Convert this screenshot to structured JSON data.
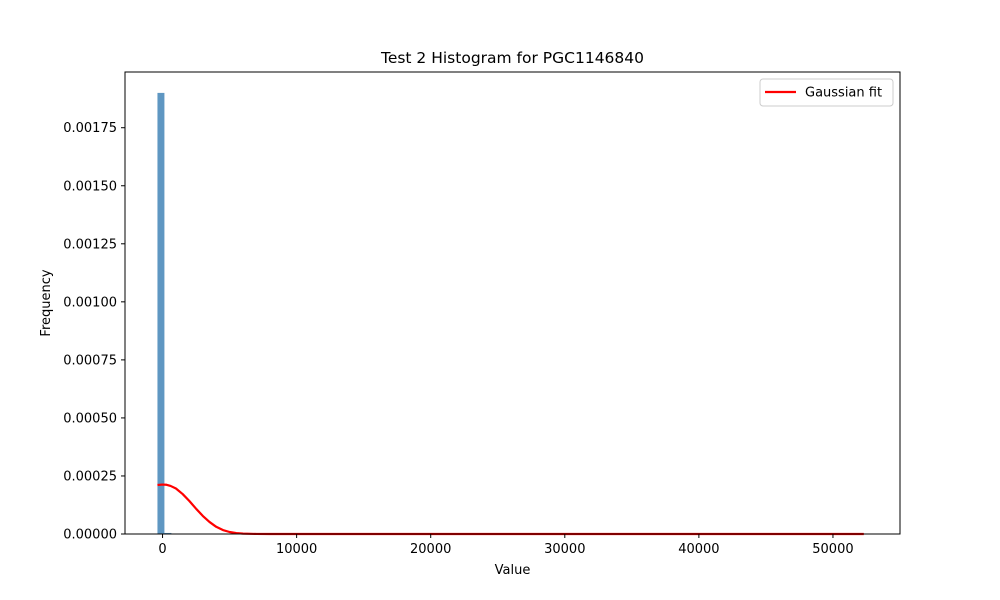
{
  "chart_data": {
    "type": "bar",
    "title": "Test 2 Histogram for PGC1146840",
    "xlabel": "Value",
    "ylabel": "Frequency",
    "xlim": [
      -2800,
      55000
    ],
    "ylim": [
      0,
      0.00199
    ],
    "x_ticks": [
      {
        "value": 0,
        "label": "0"
      },
      {
        "value": 10000,
        "label": "10000"
      },
      {
        "value": 20000,
        "label": "20000"
      },
      {
        "value": 30000,
        "label": "30000"
      },
      {
        "value": 40000,
        "label": "40000"
      },
      {
        "value": 50000,
        "label": "50000"
      }
    ],
    "y_ticks": [
      {
        "value": 0,
        "label": "0.00000"
      },
      {
        "value": 0.00025,
        "label": "0.00025"
      },
      {
        "value": 0.0005,
        "label": "0.00050"
      },
      {
        "value": 0.00075,
        "label": "0.00075"
      },
      {
        "value": 0.001,
        "label": "0.00100"
      },
      {
        "value": 0.00125,
        "label": "0.00125"
      },
      {
        "value": 0.0015,
        "label": "0.00150"
      },
      {
        "value": 0.00175,
        "label": "0.00175"
      }
    ],
    "histogram": {
      "bin_edges": [
        -380,
        140,
        660
      ],
      "values": [
        0.0019,
        4.5e-06
      ],
      "color": "#5f97c2"
    },
    "series": [
      {
        "name": "Gaussian fit",
        "type": "line",
        "color": "#ff0000",
        "x": [
          -380,
          0,
          300,
          600,
          1000,
          1500,
          2000,
          2500,
          3000,
          3500,
          4000,
          4500,
          5000,
          5500,
          6000,
          7000,
          8000,
          10000,
          20000,
          30000,
          40000,
          52300
        ],
        "y": [
          0.000211,
          0.000213,
          0.000212,
          0.000207,
          0.000196,
          0.000172,
          0.000142,
          0.000109,
          7.8e-05,
          5.2e-05,
          3.1e-05,
          1.7e-05,
          8.6e-06,
          4e-06,
          1.7e-06,
          2e-07,
          2e-08,
          0,
          0,
          0,
          0,
          0
        ]
      }
    ],
    "grid": false,
    "legend_position": "top-right"
  }
}
